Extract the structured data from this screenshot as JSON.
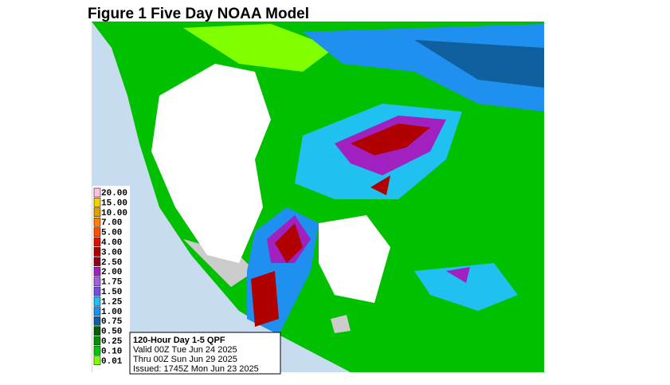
{
  "title": "Figure 1 Five Day NOAA Model",
  "legend": [
    {
      "label": "20.00",
      "color": "#ffbfe0"
    },
    {
      "label": "15.00",
      "color": "#f5d000"
    },
    {
      "label": "10.00",
      "color": "#e0a000"
    },
    {
      "label": "7.00",
      "color": "#ff8000"
    },
    {
      "label": "5.00",
      "color": "#ff5000"
    },
    {
      "label": "4.00",
      "color": "#e01000"
    },
    {
      "label": "3.00",
      "color": "#b00000"
    },
    {
      "label": "2.50",
      "color": "#900020"
    },
    {
      "label": "2.00",
      "color": "#a020c0"
    },
    {
      "label": "1.75",
      "color": "#a060e0"
    },
    {
      "label": "1.50",
      "color": "#7050e0"
    },
    {
      "label": "1.25",
      "color": "#20c0f0"
    },
    {
      "label": "1.00",
      "color": "#2090f0"
    },
    {
      "label": "0.75",
      "color": "#1060a0"
    },
    {
      "label": "0.50",
      "color": "#006000"
    },
    {
      "label": "0.25",
      "color": "#009000"
    },
    {
      "label": "0.10",
      "color": "#00c800"
    },
    {
      "label": "0.01",
      "color": "#80ff00"
    }
  ],
  "info": {
    "heading": "120-Hour Day 1-5 QPF",
    "valid": "Valid 00Z Tue Jun 24 2025",
    "thru": "Thru 00Z Sun Jun 29 2025",
    "issued": "Issued: 1745Z Mon Jun 23 2025"
  }
}
